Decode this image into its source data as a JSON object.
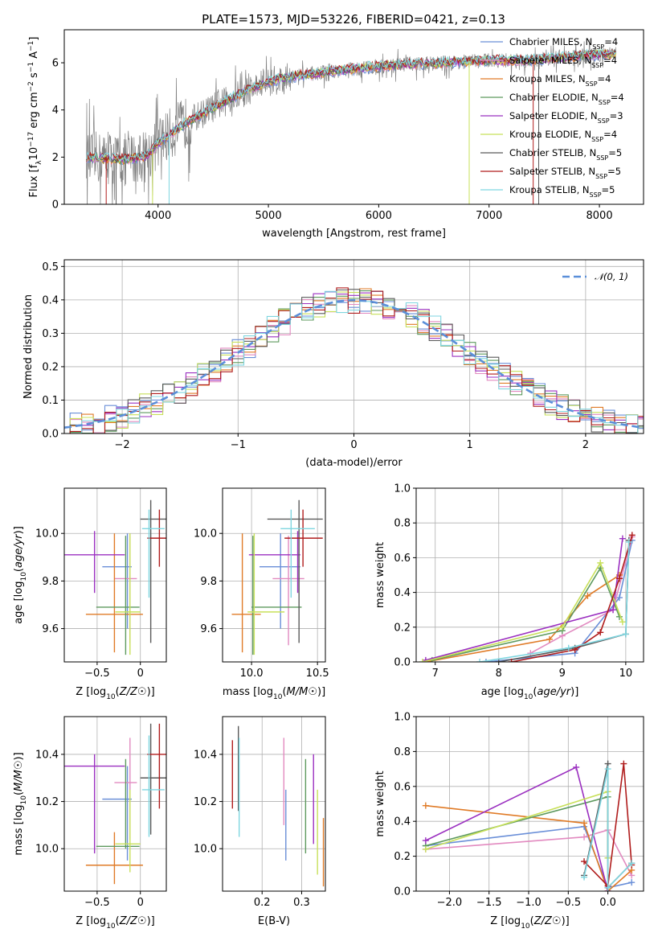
{
  "colors": {
    "chabrier_miles": "#6a8fd8",
    "salpeter_miles": "#e28ac0",
    "kroupa_miles": "#e07b27",
    "chabrier_elodie": "#5e9a5e",
    "salpeter_elodie": "#9b30c0",
    "kroupa_elodie": "#c8e05a",
    "chabrier_stelib": "#5a5a5a",
    "salpeter_stelib": "#b01c1c",
    "kroupa_stelib": "#7fd6e0",
    "data": "#808080",
    "normal": "#5b8fd9"
  },
  "chart_data": [
    {
      "id": "spectrum",
      "type": "line",
      "title": "PLATE=1573, MJD=53226, FIBERID=0421, z=0.13",
      "xlabel": "wavelength [Angstrom, rest frame]",
      "ylabel": "Flux [f",
      "ylabel_parts": [
        "Flux [f",
        "λ",
        "10",
        "−17",
        " erg cm",
        "−2",
        " s",
        "−1",
        " A",
        "−1",
        "]"
      ],
      "xlim": [
        3150,
        8400
      ],
      "ylim": [
        0,
        7.4
      ],
      "xticks": [
        4000,
        5000,
        6000,
        7000,
        8000
      ],
      "yticks": [
        0,
        2,
        4,
        6
      ],
      "legend_position": "top-right",
      "legend": [
        {
          "name": "Chabrier MILES, N",
          "sub": "SSP",
          "tail": "=4",
          "color_key": "chabrier_miles"
        },
        {
          "name": "Salpeter MILES, N",
          "sub": "SSP",
          "tail": "=4",
          "color_key": "salpeter_miles"
        },
        {
          "name": "Kroupa MILES, N",
          "sub": "SSP",
          "tail": "=4",
          "color_key": "kroupa_miles"
        },
        {
          "name": "Chabrier ELODIE, N",
          "sub": "SSP",
          "tail": "=4",
          "color_key": "chabrier_elodie"
        },
        {
          "name": "Salpeter ELODIE, N",
          "sub": "SSP",
          "tail": "=3",
          "color_key": "salpeter_elodie"
        },
        {
          "name": "Kroupa ELODIE, N",
          "sub": "SSP",
          "tail": "=4",
          "color_key": "kroupa_elodie"
        },
        {
          "name": "Chabrier STELIB, N",
          "sub": "SSP",
          "tail": "=5",
          "color_key": "chabrier_stelib"
        },
        {
          "name": "Salpeter STELIB, N",
          "sub": "SSP",
          "tail": "=5",
          "color_key": "salpeter_stelib"
        },
        {
          "name": "Kroupa STELIB, N",
          "sub": "SSP",
          "tail": "=5",
          "color_key": "kroupa_stelib"
        }
      ],
      "continuum": {
        "x": [
          3350,
          3500,
          3700,
          3900,
          4000,
          4200,
          4500,
          4800,
          5000,
          5200,
          5500,
          5800,
          6000,
          6300,
          6600,
          7000,
          7300,
          7600,
          8000,
          8150
        ],
        "y": [
          2.0,
          1.95,
          1.9,
          2.05,
          2.6,
          3.3,
          4.1,
          4.8,
          5.2,
          5.4,
          5.6,
          5.75,
          5.85,
          5.95,
          6.0,
          6.1,
          6.1,
          6.2,
          6.35,
          6.4
        ]
      }
    },
    {
      "id": "residuals",
      "type": "histogram",
      "xlabel": "(data-model)/error",
      "ylabel": "Normed distribution",
      "xlim": [
        -2.5,
        2.5
      ],
      "ylim": [
        0,
        0.52
      ],
      "xticks": [
        -2,
        -1,
        0,
        1,
        2
      ],
      "yticks": [
        0.0,
        0.1,
        0.2,
        0.3,
        0.4,
        0.5
      ],
      "legend_position": "top-right",
      "legend": [
        {
          "name": "𝒩(0, 1)",
          "color_key": "normal",
          "style": "dashed"
        }
      ],
      "bin_width": 0.1
    },
    {
      "id": "age_vs_Z",
      "type": "errorbar",
      "xlabel": "Z [log",
      "ylabel": "age  [log",
      "xlim": [
        -0.88,
        0.3
      ],
      "ylim": [
        9.46,
        10.19
      ],
      "xticks": [
        -0.5,
        0.0
      ],
      "yticks": [
        9.6,
        9.8,
        10.0
      ],
      "points": [
        {
          "series": "chabrier_miles",
          "x": -0.15,
          "y": 9.86,
          "xerr": [
            0.29,
            0.05
          ],
          "yerr": [
            0.26,
            0.14
          ]
        },
        {
          "series": "salpeter_miles",
          "x": -0.12,
          "y": 9.81,
          "xerr": [
            0.18,
            0.08
          ],
          "yerr": [
            0.27,
            0.18
          ]
        },
        {
          "series": "kroupa_miles",
          "x": -0.3,
          "y": 9.66,
          "xerr": [
            0.33,
            0.33
          ],
          "yerr": [
            0.16,
            0.34
          ]
        },
        {
          "series": "chabrier_elodie",
          "x": -0.17,
          "y": 9.69,
          "xerr": [
            0.34,
            0.16
          ],
          "yerr": [
            0.2,
            0.3
          ]
        },
        {
          "series": "salpeter_elodie",
          "x": -0.53,
          "y": 9.91,
          "xerr": [
            0.35,
            0.35
          ],
          "yerr": [
            0.16,
            0.1
          ]
        },
        {
          "series": "kroupa_elodie",
          "x": -0.12,
          "y": 9.67,
          "xerr": [
            0.17,
            0.12
          ],
          "yerr": [
            0.18,
            0.33
          ]
        },
        {
          "series": "chabrier_stelib",
          "x": 0.12,
          "y": 10.06,
          "xerr": [
            0.12,
            0.18
          ],
          "yerr": [
            0.52,
            0.08
          ]
        },
        {
          "series": "salpeter_stelib",
          "x": 0.22,
          "y": 9.98,
          "xerr": [
            0.14,
            0.08
          ],
          "yerr": [
            0.12,
            0.12
          ]
        },
        {
          "series": "kroupa_stelib",
          "x": 0.1,
          "y": 10.02,
          "xerr": [
            0.08,
            0.18
          ],
          "yerr": [
            0.29,
            0.08
          ]
        }
      ]
    },
    {
      "id": "age_vs_mass",
      "type": "errorbar",
      "xlabel": "mass [log",
      "ylabel": "",
      "xlim": [
        9.78,
        10.56
      ],
      "ylim": [
        9.46,
        10.19
      ],
      "xticks": [
        10.0,
        10.5
      ],
      "yticks": [
        9.6,
        9.8,
        10.0
      ],
      "points": [
        {
          "series": "chabrier_miles",
          "x": 10.22,
          "y": 9.86,
          "xerr": [
            0.16,
            0.15
          ],
          "yerr": [
            0.26,
            0.14
          ]
        },
        {
          "series": "salpeter_miles",
          "x": 10.28,
          "y": 9.81,
          "xerr": [
            0.12,
            0.12
          ],
          "yerr": [
            0.28,
            0.18
          ]
        },
        {
          "series": "kroupa_miles",
          "x": 9.93,
          "y": 9.66,
          "xerr": [
            0.08,
            0.14
          ],
          "yerr": [
            0.16,
            0.34
          ]
        },
        {
          "series": "chabrier_elodie",
          "x": 10.01,
          "y": 9.69,
          "xerr": [
            0.01,
            0.37
          ],
          "yerr": [
            0.2,
            0.3
          ]
        },
        {
          "series": "salpeter_elodie",
          "x": 10.35,
          "y": 9.91,
          "xerr": [
            0.37,
            0.02
          ],
          "yerr": [
            0.16,
            0.1
          ]
        },
        {
          "series": "kroupa_elodie",
          "x": 10.02,
          "y": 9.67,
          "xerr": [
            0.05,
            0.23
          ],
          "yerr": [
            0.18,
            0.33
          ]
        },
        {
          "series": "chabrier_stelib",
          "x": 10.36,
          "y": 10.06,
          "xerr": [
            0.24,
            0.18
          ],
          "yerr": [
            0.52,
            0.08
          ]
        },
        {
          "series": "salpeter_stelib",
          "x": 10.39,
          "y": 9.98,
          "xerr": [
            0.14,
            0.15
          ],
          "yerr": [
            0.12,
            0.12
          ]
        },
        {
          "series": "kroupa_stelib",
          "x": 10.3,
          "y": 10.02,
          "xerr": [
            0.08,
            0.18
          ],
          "yerr": [
            0.29,
            0.08
          ]
        }
      ]
    },
    {
      "id": "weight_vs_age",
      "type": "line",
      "xlabel": "age  [log",
      "ylabel": "mass weight",
      "xlim": [
        6.7,
        10.28
      ],
      "ylim": [
        0,
        1.0
      ],
      "xticks": [
        7,
        8,
        9,
        10
      ],
      "yticks": [
        0.0,
        0.2,
        0.4,
        0.6,
        0.8,
        1.0
      ],
      "grid": true,
      "series": [
        {
          "key": "chabrier_miles",
          "x": [
            7.8,
            9.2,
            9.9,
            10.1
          ],
          "y": [
            0.0,
            0.05,
            0.37,
            0.7
          ]
        },
        {
          "key": "salpeter_miles",
          "x": [
            8.5,
            9.0,
            9.8,
            10.1
          ],
          "y": [
            0.05,
            0.15,
            0.3,
            0.72
          ]
        },
        {
          "key": "kroupa_miles",
          "x": [
            6.85,
            8.8,
            9.4,
            9.9
          ],
          "y": [
            0.0,
            0.13,
            0.38,
            0.5
          ]
        },
        {
          "key": "chabrier_elodie",
          "x": [
            6.95,
            9.0,
            9.6,
            9.9
          ],
          "y": [
            0.01,
            0.18,
            0.54,
            0.26
          ]
        },
        {
          "key": "salpeter_elodie",
          "x": [
            6.85,
            9.8,
            9.95
          ],
          "y": [
            0.01,
            0.3,
            0.71
          ]
        },
        {
          "key": "kroupa_elodie",
          "x": [
            6.8,
            9.0,
            9.6,
            9.95
          ],
          "y": [
            0.0,
            0.2,
            0.57,
            0.23
          ]
        },
        {
          "key": "chabrier_stelib",
          "x": [
            8.0,
            9.2,
            10.0,
            10.05
          ],
          "y": [
            0.0,
            0.08,
            0.16,
            0.7
          ]
        },
        {
          "key": "salpeter_stelib",
          "x": [
            8.2,
            9.2,
            9.6,
            9.9,
            10.1
          ],
          "y": [
            0.0,
            0.07,
            0.17,
            0.48,
            0.73
          ]
        },
        {
          "key": "kroupa_stelib",
          "x": [
            7.7,
            9.1,
            10.0,
            10.05
          ],
          "y": [
            0.0,
            0.08,
            0.16,
            0.69
          ]
        }
      ]
    },
    {
      "id": "mass_vs_Z",
      "type": "errorbar",
      "xlabel": "Z [log",
      "ylabel": "mass [log",
      "xlim": [
        -0.88,
        0.3
      ],
      "ylim": [
        9.82,
        10.56
      ],
      "xticks": [
        -0.5,
        0.0
      ],
      "yticks": [
        10.0,
        10.2,
        10.4
      ],
      "points": [
        {
          "series": "chabrier_miles",
          "x": -0.15,
          "y": 10.21,
          "xerr": [
            0.29,
            0.05
          ],
          "yerr": [
            0.26,
            0.14
          ]
        },
        {
          "series": "salpeter_miles",
          "x": -0.12,
          "y": 10.28,
          "xerr": [
            0.18,
            0.08
          ],
          "yerr": [
            0.24,
            0.19
          ]
        },
        {
          "series": "kroupa_miles",
          "x": -0.3,
          "y": 9.93,
          "xerr": [
            0.33,
            0.33
          ],
          "yerr": [
            0.08,
            0.14
          ]
        },
        {
          "series": "chabrier_elodie",
          "x": -0.17,
          "y": 10.01,
          "xerr": [
            0.34,
            0.16
          ],
          "yerr": [
            0.01,
            0.37
          ]
        },
        {
          "series": "salpeter_elodie",
          "x": -0.53,
          "y": 10.35,
          "xerr": [
            0.35,
            0.35
          ],
          "yerr": [
            0.37,
            0.05
          ]
        },
        {
          "series": "kroupa_elodie",
          "x": -0.12,
          "y": 10.02,
          "xerr": [
            0.17,
            0.12
          ],
          "yerr": [
            0.12,
            0.23
          ]
        },
        {
          "series": "chabrier_stelib",
          "x": 0.12,
          "y": 10.3,
          "xerr": [
            0.12,
            0.18
          ],
          "yerr": [
            0.24,
            0.23
          ]
        },
        {
          "series": "salpeter_stelib",
          "x": 0.22,
          "y": 10.4,
          "xerr": [
            0.14,
            0.08
          ],
          "yerr": [
            0.23,
            0.13
          ]
        },
        {
          "series": "kroupa_stelib",
          "x": 0.1,
          "y": 10.25,
          "xerr": [
            0.08,
            0.18
          ],
          "yerr": [
            0.2,
            0.23
          ]
        }
      ]
    },
    {
      "id": "mass_vs_ebv",
      "type": "errorbar",
      "xlabel": "E(B-V)",
      "ylabel": "",
      "xlim": [
        0.1,
        0.36
      ],
      "ylim": [
        9.82,
        10.56
      ],
      "xticks": [
        0.2,
        0.3
      ],
      "yticks": [
        10.0,
        10.2,
        10.4
      ],
      "points": [
        {
          "series": "chabrier_miles",
          "x": 0.26,
          "y": 10.09,
          "yerr": [
            0.14,
            0.16
          ]
        },
        {
          "series": "salpeter_miles",
          "x": 0.255,
          "y": 10.29,
          "yerr": [
            0.19,
            0.18
          ]
        },
        {
          "series": "kroupa_miles",
          "x": 0.355,
          "y": 9.99,
          "yerr": [
            0.15,
            0.14
          ]
        },
        {
          "series": "chabrier_elodie",
          "x": 0.31,
          "y": 10.18,
          "yerr": [
            0.2,
            0.2
          ]
        },
        {
          "series": "salpeter_elodie",
          "x": 0.33,
          "y": 10.2,
          "yerr": [
            0.18,
            0.2
          ]
        },
        {
          "series": "kroupa_elodie",
          "x": 0.34,
          "y": 10.08,
          "yerr": [
            0.19,
            0.17
          ]
        },
        {
          "series": "chabrier_stelib",
          "x": 0.14,
          "y": 10.4,
          "yerr": [
            0.24,
            0.12
          ]
        },
        {
          "series": "salpeter_stelib",
          "x": 0.125,
          "y": 10.3,
          "yerr": [
            0.13,
            0.16
          ]
        },
        {
          "series": "kroupa_stelib",
          "x": 0.142,
          "y": 10.25,
          "yerr": [
            0.2,
            0.22
          ]
        }
      ]
    },
    {
      "id": "weight_vs_Z",
      "type": "line",
      "xlabel": "Z [log",
      "ylabel": "mass weight",
      "xlim": [
        -2.42,
        0.45
      ],
      "ylim": [
        0,
        1.0
      ],
      "xticks": [
        -2.0,
        -1.5,
        -1.0,
        -0.5,
        0.0
      ],
      "yticks": [
        0.0,
        0.2,
        0.4,
        0.6,
        0.8,
        1.0
      ],
      "grid": true,
      "series": [
        {
          "key": "chabrier_miles",
          "x": [
            -2.3,
            -0.3,
            0.0,
            0.3
          ],
          "y": [
            0.26,
            0.37,
            0.02,
            0.05
          ]
        },
        {
          "key": "salpeter_miles",
          "x": [
            -2.3,
            -0.3,
            0.0,
            0.3
          ],
          "y": [
            0.24,
            0.31,
            0.35,
            0.09
          ]
        },
        {
          "key": "kroupa_miles",
          "x": [
            -2.3,
            -0.3,
            0.0,
            0.3
          ],
          "y": [
            0.49,
            0.39,
            0.0,
            0.12
          ]
        },
        {
          "key": "chabrier_elodie",
          "x": [
            -2.3,
            0.0,
            0.0
          ],
          "y": [
            0.26,
            0.54,
            0.19
          ]
        },
        {
          "key": "salpeter_elodie",
          "x": [
            -2.3,
            -0.4,
            0.0
          ],
          "y": [
            0.29,
            0.71,
            0.0
          ]
        },
        {
          "key": "kroupa_elodie",
          "x": [
            -2.3,
            0.0,
            0.0
          ],
          "y": [
            0.24,
            0.57,
            0.19
          ]
        },
        {
          "key": "chabrier_stelib",
          "x": [
            -0.3,
            0.0,
            0.0,
            0.3
          ],
          "y": [
            0.09,
            0.73,
            0.02,
            0.16
          ]
        },
        {
          "key": "salpeter_stelib",
          "x": [
            -0.3,
            0.0,
            0.2,
            0.3
          ],
          "y": [
            0.17,
            0.03,
            0.73,
            0.15
          ]
        },
        {
          "key": "kroupa_stelib",
          "x": [
            -0.3,
            0.0,
            0.0,
            0.3
          ],
          "y": [
            0.08,
            0.7,
            0.02,
            0.16
          ]
        }
      ]
    }
  ]
}
